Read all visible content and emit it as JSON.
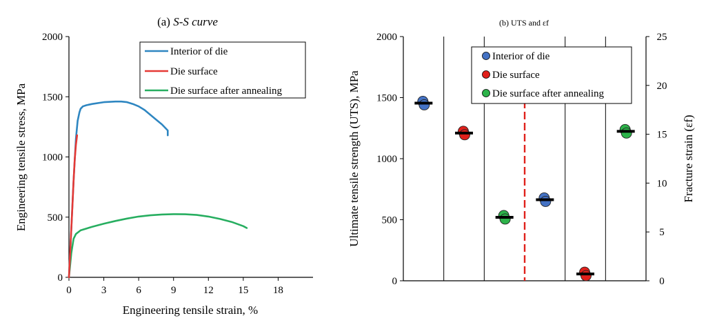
{
  "chart_data": [
    {
      "type": "line",
      "title_prefix": "(a) ",
      "title_italic": "S-S curve",
      "xlabel": "Engineering tensile strain, %",
      "ylabel": "Engineering tensile stress, MPa",
      "xlim": [
        0,
        21
      ],
      "ylim": [
        0,
        2000
      ],
      "xticks": [
        "0",
        "3",
        "6",
        "9",
        "12",
        "15",
        "18"
      ],
      "yticks": [
        "0",
        "500",
        "1000",
        "1500",
        "2000"
      ],
      "legend_position": "top-right",
      "series": [
        {
          "name": "Interior of die",
          "color": "#2E86C1",
          "x": [
            0,
            0.2,
            0.4,
            0.6,
            0.75,
            0.9,
            1.0,
            1.2,
            1.5,
            2.0,
            3.0,
            4.0,
            4.5,
            5.0,
            5.5,
            6.0,
            6.5,
            7.0,
            7.5,
            8.0,
            8.35,
            8.5,
            8.5
          ],
          "y": [
            0,
            400,
            800,
            1150,
            1300,
            1370,
            1400,
            1420,
            1430,
            1440,
            1455,
            1460,
            1460,
            1455,
            1440,
            1420,
            1390,
            1350,
            1310,
            1270,
            1235,
            1220,
            1180
          ]
        },
        {
          "name": "Die surface",
          "color": "#E53935",
          "x": [
            0,
            0.1,
            0.2,
            0.3,
            0.4,
            0.5,
            0.6,
            0.7
          ],
          "y": [
            0,
            200,
            400,
            600,
            800,
            980,
            1100,
            1180
          ]
        },
        {
          "name": "Die surface after annealing",
          "color": "#27AE60",
          "x": [
            0,
            0.2,
            0.4,
            0.6,
            1.0,
            2.0,
            3.0,
            4.0,
            5.0,
            6.0,
            7.0,
            8.0,
            9.0,
            10.0,
            11.0,
            12.0,
            13.0,
            14.0,
            15.0,
            15.3
          ],
          "y": [
            0,
            200,
            320,
            360,
            390,
            420,
            445,
            468,
            488,
            505,
            515,
            522,
            525,
            524,
            518,
            505,
            485,
            460,
            425,
            410
          ]
        }
      ]
    },
    {
      "type": "scatter",
      "title": "(b) UTS and εf",
      "ylabel": "Ultimate tensile strength (UTS), MPa",
      "y2label": "Fracture strain (εf)",
      "ylim": [
        0,
        2000
      ],
      "y2lim": [
        0,
        25
      ],
      "yticks": [
        "0",
        "500",
        "1000",
        "1500",
        "2000"
      ],
      "y2ticks": [
        "0",
        "5",
        "10",
        "15",
        "20",
        "25"
      ],
      "column_count": 6,
      "divider_after_column": 3,
      "legend_position": "top-center",
      "legend": [
        {
          "name": "Interior of die",
          "color": "#4472C4"
        },
        {
          "name": "Die surface",
          "color": "#E0201B"
        },
        {
          "name": "Die surface after annealing",
          "color": "#2DB34A"
        }
      ],
      "points": [
        {
          "column": 1,
          "axis": "left",
          "value": 1455,
          "series": "Interior of die",
          "color": "#4472C4"
        },
        {
          "column": 2,
          "axis": "left",
          "value": 1210,
          "series": "Die surface",
          "color": "#E0201B"
        },
        {
          "column": 3,
          "axis": "left",
          "value": 520,
          "series": "Die surface after annealing",
          "color": "#2DB34A"
        },
        {
          "column": 4,
          "axis": "right",
          "value": 8.3,
          "series": "Interior of die",
          "color": "#4472C4"
        },
        {
          "column": 5,
          "axis": "right",
          "value": 0.7,
          "series": "Die surface",
          "color": "#E0201B"
        },
        {
          "column": 6,
          "axis": "right",
          "value": 15.3,
          "series": "Die surface after annealing",
          "color": "#2DB34A"
        }
      ]
    }
  ]
}
